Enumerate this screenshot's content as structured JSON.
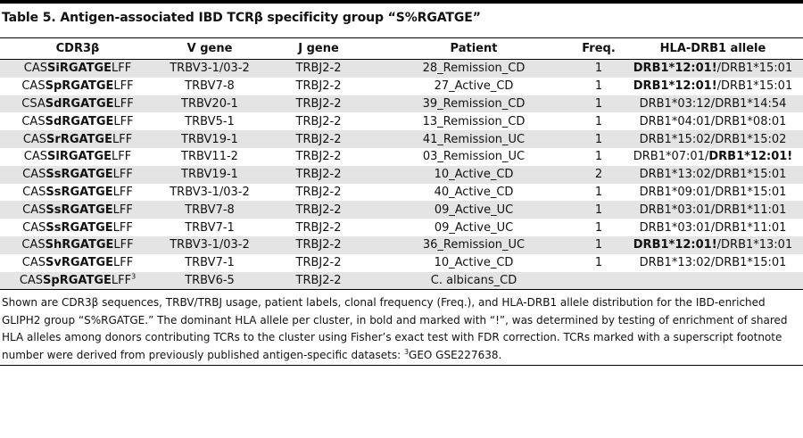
{
  "table": {
    "title": "Table 5. Antigen-associated IBD TCRβ specificity group “S%RGATGE”",
    "columns": [
      "CDR3β",
      "V gene",
      "J gene",
      "Patient",
      "Freq.",
      "HLA-DRB1 allele"
    ],
    "rows": [
      {
        "cdr3_pre": "CAS",
        "cdr3_mid": "Si",
        "cdr3_motif": "RGATGE",
        "cdr3_post": "LFF",
        "cdr3_sup": "",
        "v": "TRBV3-1/03-2",
        "j": "TRBJ2-2",
        "patient": "28_Remission_CD",
        "freq": "1",
        "hla1": "DRB1*12:01!",
        "hla1_bold": true,
        "hla2": "DRB1*15:01",
        "hla2_bold": false
      },
      {
        "cdr3_pre": "CAS",
        "cdr3_mid": "Sp",
        "cdr3_motif": "RGATGE",
        "cdr3_post": "LFF",
        "cdr3_sup": "",
        "v": "TRBV7-8",
        "j": "TRBJ2-2",
        "patient": "27_Active_CD",
        "freq": "1",
        "hla1": "DRB1*12:01!",
        "hla1_bold": true,
        "hla2": "DRB1*15:01",
        "hla2_bold": false
      },
      {
        "cdr3_pre": "CSA",
        "cdr3_mid": "Sd",
        "cdr3_motif": "RGATGE",
        "cdr3_post": "LFF",
        "cdr3_sup": "",
        "v": "TRBV20-1",
        "j": "TRBJ2-2",
        "patient": "39_Remission_CD",
        "freq": "1",
        "hla1": "DRB1*03:12",
        "hla1_bold": false,
        "hla2": "DRB1*14:54",
        "hla2_bold": false
      },
      {
        "cdr3_pre": "CAS",
        "cdr3_mid": "Sd",
        "cdr3_motif": "RGATGE",
        "cdr3_post": "LFF",
        "cdr3_sup": "",
        "v": "TRBV5-1",
        "j": "TRBJ2-2",
        "patient": "13_Remission_CD",
        "freq": "1",
        "hla1": "DRB1*04:01",
        "hla1_bold": false,
        "hla2": "DRB1*08:01",
        "hla2_bold": false
      },
      {
        "cdr3_pre": "CAS",
        "cdr3_mid": "Sr",
        "cdr3_motif": "RGATGE",
        "cdr3_post": "LFF",
        "cdr3_sup": "",
        "v": "TRBV19-1",
        "j": "TRBJ2-2",
        "patient": "41_Remission_UC",
        "freq": "1",
        "hla1": "DRB1*15:02",
        "hla1_bold": false,
        "hla2": "DRB1*15:02",
        "hla2_bold": false
      },
      {
        "cdr3_pre": "CAS",
        "cdr3_mid": "Sl",
        "cdr3_motif": "RGATGE",
        "cdr3_post": "LFF",
        "cdr3_sup": "",
        "v": "TRBV11-2",
        "j": "TRBJ2-2",
        "patient": "03_Remission_UC",
        "freq": "1",
        "hla1": "DRB1*07:01",
        "hla1_bold": false,
        "hla2": "DRB1*12:01!",
        "hla2_bold": true
      },
      {
        "cdr3_pre": "CAS",
        "cdr3_mid": "Ss",
        "cdr3_motif": "RGATGE",
        "cdr3_post": "LFF",
        "cdr3_sup": "",
        "v": "TRBV19-1",
        "j": "TRBJ2-2",
        "patient": "10_Active_CD",
        "freq": "2",
        "hla1": "DRB1*13:02",
        "hla1_bold": false,
        "hla2": "DRB1*15:01",
        "hla2_bold": false
      },
      {
        "cdr3_pre": "CAS",
        "cdr3_mid": "Ss",
        "cdr3_motif": "RGATGE",
        "cdr3_post": "LFF",
        "cdr3_sup": "",
        "v": "TRBV3-1/03-2",
        "j": "TRBJ2-2",
        "patient": "40_Active_CD",
        "freq": "1",
        "hla1": "DRB1*09:01",
        "hla1_bold": false,
        "hla2": "DRB1*15:01",
        "hla2_bold": false
      },
      {
        "cdr3_pre": "CAS",
        "cdr3_mid": "Ss",
        "cdr3_motif": "RGATGE",
        "cdr3_post": "LFF",
        "cdr3_sup": "",
        "v": "TRBV7-8",
        "j": "TRBJ2-2",
        "patient": "09_Active_UC",
        "freq": "1",
        "hla1": "DRB1*03:01",
        "hla1_bold": false,
        "hla2": "DRB1*11:01",
        "hla2_bold": false
      },
      {
        "cdr3_pre": "CAS",
        "cdr3_mid": "Ss",
        "cdr3_motif": "RGATGE",
        "cdr3_post": "LFF",
        "cdr3_sup": "",
        "v": "TRBV7-1",
        "j": "TRBJ2-2",
        "patient": "09_Active_UC",
        "freq": "1",
        "hla1": "DRB1*03:01",
        "hla1_bold": false,
        "hla2": "DRB1*11:01",
        "hla2_bold": false
      },
      {
        "cdr3_pre": "CAS",
        "cdr3_mid": "Sh",
        "cdr3_motif": "RGATGE",
        "cdr3_post": "LFF",
        "cdr3_sup": "",
        "v": "TRBV3-1/03-2",
        "j": "TRBJ2-2",
        "patient": "36_Remission_UC",
        "freq": "1",
        "hla1": "DRB1*12:01!",
        "hla1_bold": true,
        "hla2": "DRB1*13:01",
        "hla2_bold": false
      },
      {
        "cdr3_pre": "CAS",
        "cdr3_mid": "Sv",
        "cdr3_motif": "RGATGE",
        "cdr3_post": "LFF",
        "cdr3_sup": "",
        "v": "TRBV7-1",
        "j": "TRBJ2-2",
        "patient": "10_Active_CD",
        "freq": "1",
        "hla1": "DRB1*13:02",
        "hla1_bold": false,
        "hla2": "DRB1*15:01",
        "hla2_bold": false
      },
      {
        "cdr3_pre": "CAS",
        "cdr3_mid": "Sp",
        "cdr3_motif": "RGATGE",
        "cdr3_post": "LFF",
        "cdr3_sup": "3",
        "v": "TRBV6-5",
        "j": "TRBJ2-2",
        "patient": "C. albicans_CD",
        "freq": "",
        "hla1": "",
        "hla1_bold": false,
        "hla2": "",
        "hla2_bold": false
      }
    ],
    "footnote": {
      "before": "Shown are CDR3β sequences, TRBV/TRBJ usage, patient labels, clonal frequency (Freq.), and HLA-DRB1 allele distribution for the IBD-enriched GLIPH2 group “S%RGATGE.” The dominant HLA allele per cluster, in bold and marked with “!”, was determined by testing of enrichment of shared HLA alleles among donors contributing TCRs to the cluster using Fisher’s exact test with FDR correction. TCRs marked with a superscript footnote number were derived from previously published antigen-specific datasets: ",
      "sup": "3",
      "after": "GEO GSE227638."
    }
  }
}
